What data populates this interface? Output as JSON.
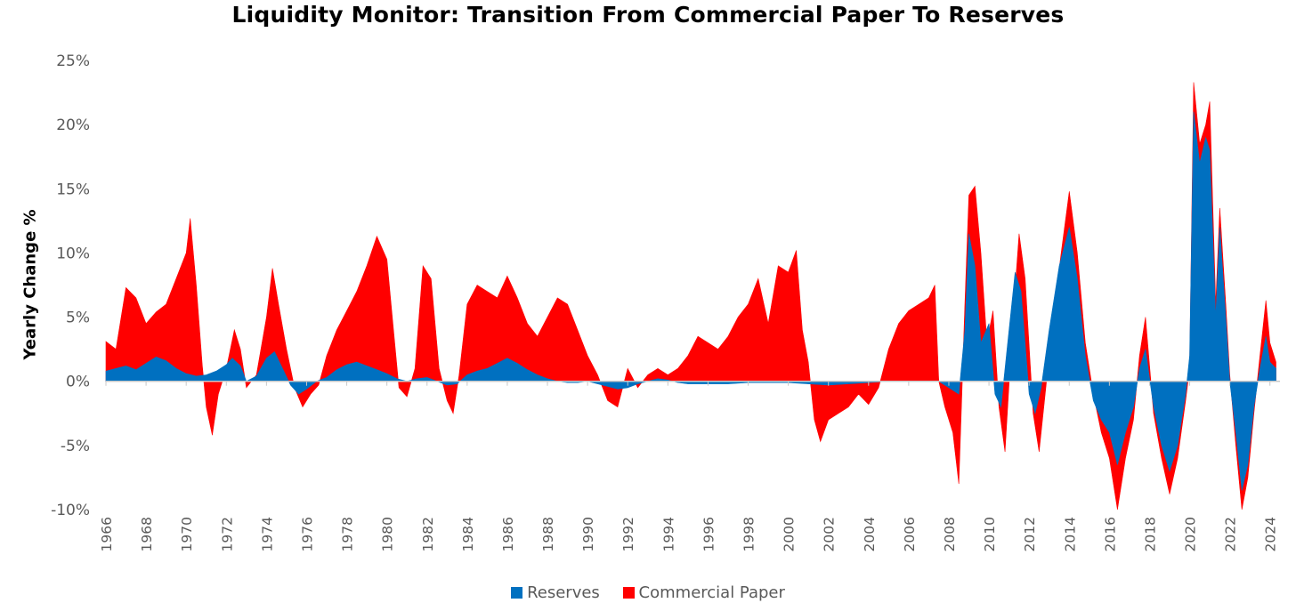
{
  "chart_data": {
    "type": "area",
    "title": "Liquidity Monitor: Transition From Commercial Paper To Reserves",
    "ylabel": "Yearly Change %",
    "xlabel": "",
    "ylim": [
      -10,
      25
    ],
    "xlim": [
      1966,
      2024.5
    ],
    "ytick_labels": [
      "25%",
      "20%",
      "15%",
      "10%",
      "5%",
      "0%",
      "-5%",
      "-10%"
    ],
    "ytick_values": [
      25,
      20,
      15,
      10,
      5,
      0,
      -5,
      -10
    ],
    "xtick_labels": [
      "1966",
      "1968",
      "1970",
      "1972",
      "1974",
      "1976",
      "1978",
      "1980",
      "1982",
      "1984",
      "1986",
      "1988",
      "1990",
      "1992",
      "1994",
      "1996",
      "1998",
      "2000",
      "2002",
      "2004",
      "2006",
      "2008",
      "2010",
      "2012",
      "2014",
      "2016",
      "2018",
      "2020",
      "2022",
      "2024"
    ],
    "grid": false,
    "legend_position": "bottom",
    "stacked": true,
    "series": [
      {
        "name": "Reserves",
        "color": "#0070C0",
        "points": [
          [
            1966.0,
            0.8
          ],
          [
            1966.5,
            1.0
          ],
          [
            1967.0,
            1.2
          ],
          [
            1967.5,
            0.9
          ],
          [
            1968.0,
            1.4
          ],
          [
            1968.5,
            1.9
          ],
          [
            1969.0,
            1.6
          ],
          [
            1969.5,
            1.0
          ],
          [
            1970.0,
            0.6
          ],
          [
            1970.5,
            0.4
          ],
          [
            1971.0,
            0.5
          ],
          [
            1971.5,
            0.8
          ],
          [
            1972.0,
            1.3
          ],
          [
            1972.3,
            1.8
          ],
          [
            1972.7,
            1.2
          ],
          [
            1973.0,
            0.0
          ],
          [
            1973.5,
            0.4
          ],
          [
            1974.0,
            1.8
          ],
          [
            1974.4,
            2.3
          ],
          [
            1974.8,
            1.0
          ],
          [
            1975.2,
            -0.3
          ],
          [
            1975.6,
            -1.0
          ],
          [
            1976.0,
            -0.6
          ],
          [
            1976.5,
            0.0
          ],
          [
            1977.0,
            0.3
          ],
          [
            1977.5,
            0.9
          ],
          [
            1978.0,
            1.3
          ],
          [
            1978.5,
            1.5
          ],
          [
            1979.0,
            1.2
          ],
          [
            1979.5,
            0.9
          ],
          [
            1980.0,
            0.6
          ],
          [
            1980.5,
            0.2
          ],
          [
            1981.0,
            0.0
          ],
          [
            1981.5,
            0.2
          ],
          [
            1982.0,
            0.3
          ],
          [
            1982.5,
            0.0
          ],
          [
            1983.0,
            -0.3
          ],
          [
            1983.5,
            -0.2
          ],
          [
            1984.0,
            0.5
          ],
          [
            1984.5,
            0.8
          ],
          [
            1985.0,
            1.0
          ],
          [
            1985.5,
            1.4
          ],
          [
            1986.0,
            1.8
          ],
          [
            1986.5,
            1.4
          ],
          [
            1987.0,
            0.9
          ],
          [
            1987.5,
            0.5
          ],
          [
            1988.0,
            0.2
          ],
          [
            1988.5,
            0.0
          ],
          [
            1989.0,
            -0.1
          ],
          [
            1989.5,
            -0.1
          ],
          [
            1990.0,
            0.0
          ],
          [
            1990.5,
            -0.2
          ],
          [
            1991.0,
            -0.4
          ],
          [
            1991.5,
            -0.6
          ],
          [
            1992.0,
            -0.5
          ],
          [
            1992.5,
            -0.2
          ],
          [
            1993.0,
            0.0
          ],
          [
            1993.5,
            0.2
          ],
          [
            1994.0,
            0.1
          ],
          [
            1994.5,
            -0.1
          ],
          [
            1995.0,
            -0.2
          ],
          [
            1996.0,
            -0.2
          ],
          [
            1997.0,
            -0.2
          ],
          [
            1998.0,
            -0.1
          ],
          [
            1999.0,
            -0.1
          ],
          [
            2000.0,
            -0.1
          ],
          [
            2001.0,
            -0.2
          ],
          [
            2002.0,
            -0.3
          ],
          [
            2003.0,
            -0.2
          ],
          [
            2004.0,
            -0.1
          ],
          [
            2005.0,
            0.0
          ],
          [
            2006.0,
            0.0
          ],
          [
            2007.0,
            0.0
          ],
          [
            2007.5,
            0.0
          ],
          [
            2008.0,
            -0.5
          ],
          [
            2008.5,
            -1.0
          ],
          [
            2008.8,
            4.0
          ],
          [
            2009.0,
            11.5
          ],
          [
            2009.3,
            9.0
          ],
          [
            2009.6,
            3.0
          ],
          [
            2010.0,
            4.5
          ],
          [
            2010.3,
            -1.0
          ],
          [
            2010.6,
            -2.0
          ],
          [
            2011.0,
            4.0
          ],
          [
            2011.3,
            8.5
          ],
          [
            2011.6,
            7.0
          ],
          [
            2012.0,
            -1.0
          ],
          [
            2012.3,
            -2.5
          ],
          [
            2012.6,
            -0.5
          ],
          [
            2013.0,
            4.0
          ],
          [
            2013.5,
            9.0
          ],
          [
            2014.0,
            12.0
          ],
          [
            2014.4,
            8.0
          ],
          [
            2014.8,
            2.0
          ],
          [
            2015.2,
            -1.5
          ],
          [
            2015.6,
            -3.0
          ],
          [
            2016.0,
            -4.0
          ],
          [
            2016.4,
            -6.5
          ],
          [
            2016.8,
            -4.0
          ],
          [
            2017.2,
            -2.0
          ],
          [
            2017.5,
            1.0
          ],
          [
            2017.8,
            2.5
          ],
          [
            2018.2,
            -2.0
          ],
          [
            2018.6,
            -5.0
          ],
          [
            2019.0,
            -7.0
          ],
          [
            2019.4,
            -5.0
          ],
          [
            2019.8,
            -1.0
          ],
          [
            2020.0,
            2.0
          ],
          [
            2020.2,
            21.0
          ],
          [
            2020.5,
            17.0
          ],
          [
            2020.8,
            19.0
          ],
          [
            2021.0,
            18.0
          ],
          [
            2021.3,
            5.0
          ],
          [
            2021.5,
            12.0
          ],
          [
            2021.8,
            5.0
          ],
          [
            2022.0,
            0.0
          ],
          [
            2022.3,
            -4.0
          ],
          [
            2022.6,
            -8.5
          ],
          [
            2022.9,
            -6.5
          ],
          [
            2023.2,
            -2.0
          ],
          [
            2023.5,
            1.0
          ],
          [
            2023.8,
            3.5
          ],
          [
            2024.0,
            1.5
          ],
          [
            2024.3,
            1.0
          ]
        ]
      },
      {
        "name": "Commercial Paper",
        "color": "#FF0000",
        "points": [
          [
            1966.0,
            3.1
          ],
          [
            1966.5,
            2.5
          ],
          [
            1967.0,
            7.3
          ],
          [
            1967.5,
            6.5
          ],
          [
            1968.0,
            4.5
          ],
          [
            1968.5,
            5.4
          ],
          [
            1969.0,
            6.0
          ],
          [
            1969.5,
            8.0
          ],
          [
            1970.0,
            10.0
          ],
          [
            1970.2,
            12.7
          ],
          [
            1970.5,
            7.5
          ],
          [
            1970.8,
            1.3
          ],
          [
            1971.0,
            -2.0
          ],
          [
            1971.3,
            -4.2
          ],
          [
            1971.6,
            -1.0
          ],
          [
            1972.0,
            1.0
          ],
          [
            1972.4,
            4.0
          ],
          [
            1972.7,
            2.5
          ],
          [
            1973.0,
            -0.5
          ],
          [
            1973.5,
            0.5
          ],
          [
            1974.0,
            5.0
          ],
          [
            1974.3,
            8.8
          ],
          [
            1974.6,
            6.0
          ],
          [
            1975.0,
            2.5
          ],
          [
            1975.4,
            -0.5
          ],
          [
            1975.8,
            -2.0
          ],
          [
            1976.2,
            -1.0
          ],
          [
            1976.6,
            -0.3
          ],
          [
            1977.0,
            2.0
          ],
          [
            1977.5,
            4.0
          ],
          [
            1978.0,
            5.5
          ],
          [
            1978.5,
            7.0
          ],
          [
            1979.0,
            9.0
          ],
          [
            1979.5,
            11.3
          ],
          [
            1980.0,
            9.5
          ],
          [
            1980.3,
            4.5
          ],
          [
            1980.6,
            -0.5
          ],
          [
            1981.0,
            -1.2
          ],
          [
            1981.4,
            1.0
          ],
          [
            1981.8,
            9.0
          ],
          [
            1982.2,
            8.0
          ],
          [
            1982.6,
            1.0
          ],
          [
            1983.0,
            -1.5
          ],
          [
            1983.3,
            -2.5
          ],
          [
            1983.6,
            0.5
          ],
          [
            1984.0,
            6.0
          ],
          [
            1984.5,
            7.5
          ],
          [
            1985.0,
            7.0
          ],
          [
            1985.5,
            6.5
          ],
          [
            1986.0,
            8.2
          ],
          [
            1986.5,
            6.5
          ],
          [
            1987.0,
            4.5
          ],
          [
            1987.5,
            3.5
          ],
          [
            1988.0,
            5.0
          ],
          [
            1988.5,
            6.5
          ],
          [
            1989.0,
            6.0
          ],
          [
            1989.5,
            4.0
          ],
          [
            1990.0,
            2.0
          ],
          [
            1990.5,
            0.5
          ],
          [
            1991.0,
            -1.5
          ],
          [
            1991.5,
            -2.0
          ],
          [
            1992.0,
            1.0
          ],
          [
            1992.5,
            -0.5
          ],
          [
            1993.0,
            0.5
          ],
          [
            1993.5,
            1.0
          ],
          [
            1994.0,
            0.5
          ],
          [
            1994.5,
            1.0
          ],
          [
            1995.0,
            2.0
          ],
          [
            1995.5,
            3.5
          ],
          [
            1996.0,
            3.0
          ],
          [
            1996.5,
            2.5
          ],
          [
            1997.0,
            3.5
          ],
          [
            1997.5,
            5.0
          ],
          [
            1998.0,
            6.0
          ],
          [
            1998.5,
            8.0
          ],
          [
            1999.0,
            4.5
          ],
          [
            1999.5,
            9.0
          ],
          [
            2000.0,
            8.5
          ],
          [
            2000.4,
            10.2
          ],
          [
            2000.7,
            4.0
          ],
          [
            2001.0,
            1.5
          ],
          [
            2001.3,
            -3.0
          ],
          [
            2001.6,
            -4.7
          ],
          [
            2002.0,
            -3.0
          ],
          [
            2002.5,
            -2.5
          ],
          [
            2003.0,
            -2.0
          ],
          [
            2003.5,
            -1.0
          ],
          [
            2004.0,
            -1.8
          ],
          [
            2004.5,
            -0.5
          ],
          [
            2005.0,
            2.5
          ],
          [
            2005.5,
            4.5
          ],
          [
            2006.0,
            5.5
          ],
          [
            2006.5,
            6.0
          ],
          [
            2007.0,
            6.5
          ],
          [
            2007.3,
            7.5
          ],
          [
            2007.5,
            0.0
          ],
          [
            2007.8,
            -2.0
          ],
          [
            2008.2,
            -4.0
          ],
          [
            2008.5,
            -8.0
          ],
          [
            2008.8,
            6.0
          ],
          [
            2009.0,
            14.5
          ],
          [
            2009.3,
            15.2
          ],
          [
            2009.6,
            10.0
          ],
          [
            2009.9,
            3.0
          ],
          [
            2010.2,
            5.5
          ],
          [
            2010.5,
            -2.0
          ],
          [
            2010.8,
            -5.5
          ],
          [
            2011.2,
            5.0
          ],
          [
            2011.5,
            11.5
          ],
          [
            2011.8,
            8.0
          ],
          [
            2012.2,
            -2.5
          ],
          [
            2012.5,
            -5.5
          ],
          [
            2012.8,
            -1.0
          ],
          [
            2013.2,
            5.0
          ],
          [
            2013.6,
            10.0
          ],
          [
            2014.0,
            14.8
          ],
          [
            2014.4,
            10.0
          ],
          [
            2014.8,
            3.0
          ],
          [
            2015.2,
            -1.0
          ],
          [
            2015.6,
            -4.0
          ],
          [
            2016.0,
            -6.0
          ],
          [
            2016.4,
            -10.0
          ],
          [
            2016.8,
            -6.0
          ],
          [
            2017.2,
            -3.0
          ],
          [
            2017.5,
            2.0
          ],
          [
            2017.8,
            5.0
          ],
          [
            2018.2,
            -2.5
          ],
          [
            2018.6,
            -6.0
          ],
          [
            2019.0,
            -8.8
          ],
          [
            2019.4,
            -6.0
          ],
          [
            2019.8,
            -1.5
          ],
          [
            2020.0,
            1.0
          ],
          [
            2020.2,
            23.3
          ],
          [
            2020.5,
            18.5
          ],
          [
            2020.8,
            20.0
          ],
          [
            2021.0,
            21.8
          ],
          [
            2021.3,
            6.0
          ],
          [
            2021.5,
            13.5
          ],
          [
            2021.8,
            6.0
          ],
          [
            2022.0,
            0.5
          ],
          [
            2022.3,
            -5.0
          ],
          [
            2022.6,
            -10.0
          ],
          [
            2022.9,
            -7.5
          ],
          [
            2023.2,
            -2.5
          ],
          [
            2023.5,
            2.0
          ],
          [
            2023.8,
            6.3
          ],
          [
            2024.0,
            3.0
          ],
          [
            2024.3,
            1.5
          ]
        ]
      }
    ]
  }
}
